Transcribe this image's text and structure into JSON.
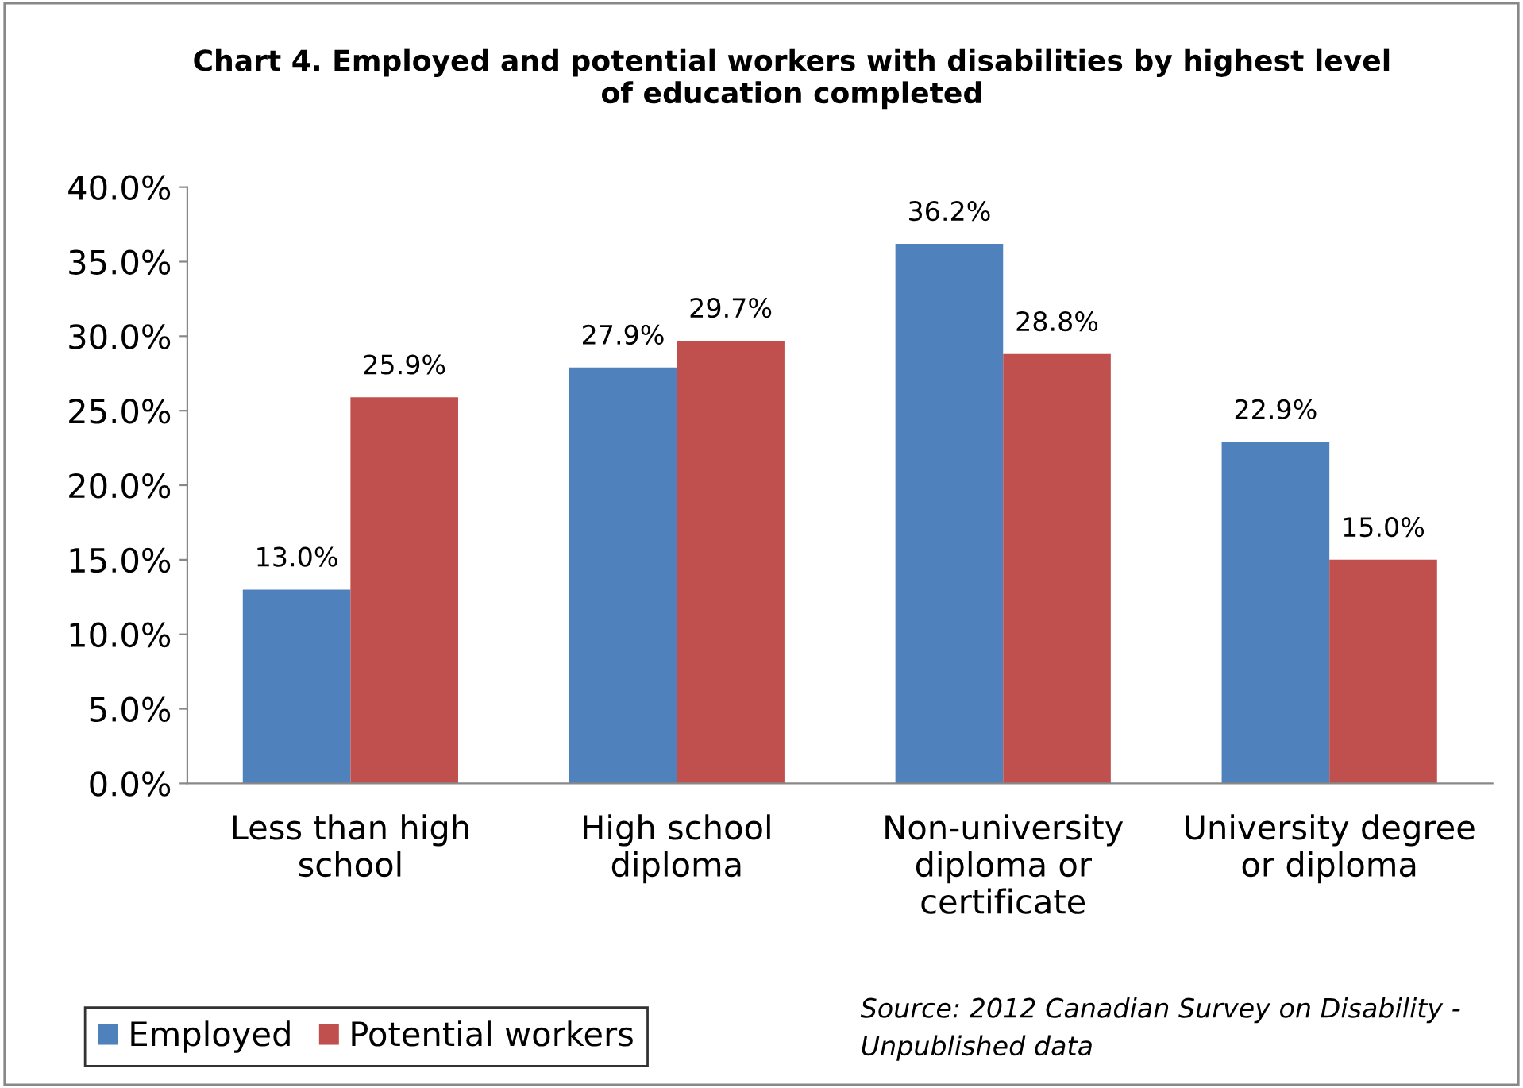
{
  "chart_data": {
    "type": "bar",
    "title": "Chart 4. Employed and potential workers with disabilities by highest level\nof education completed",
    "categories": [
      "Less than high\nschool",
      "High school\ndiploma",
      "Non-university\ndiploma or\ncertificate",
      "University degree\nor diploma"
    ],
    "series": [
      {
        "name": "Employed",
        "color": "#4f81bd",
        "values": [
          13.0,
          27.9,
          36.2,
          22.9
        ],
        "value_labels": [
          "13.0%",
          "27.9%",
          "36.2%",
          "22.9%"
        ]
      },
      {
        "name": "Potential workers",
        "color": "#c0504d",
        "values": [
          25.9,
          29.7,
          28.8,
          15.0
        ],
        "value_labels": [
          "25.9%",
          "29.7%",
          "28.8%",
          "15.0%"
        ]
      }
    ],
    "ylim": [
      0,
      40
    ],
    "yticks": [
      {
        "value": 0,
        "label": "0.0%"
      },
      {
        "value": 5,
        "label": "5.0%"
      },
      {
        "value": 10,
        "label": "10.0%"
      },
      {
        "value": 15,
        "label": "15.0%"
      },
      {
        "value": 20,
        "label": "20.0%"
      },
      {
        "value": 25,
        "label": "25.0%"
      },
      {
        "value": 30,
        "label": "30.0%"
      },
      {
        "value": 35,
        "label": "35.0%"
      },
      {
        "value": 40,
        "label": "40.0%"
      }
    ],
    "grid": false,
    "legend": "bottom left",
    "annotations": [
      "Source: 2012 Canadian Survey on Disability -\nUnpublished data"
    ]
  }
}
